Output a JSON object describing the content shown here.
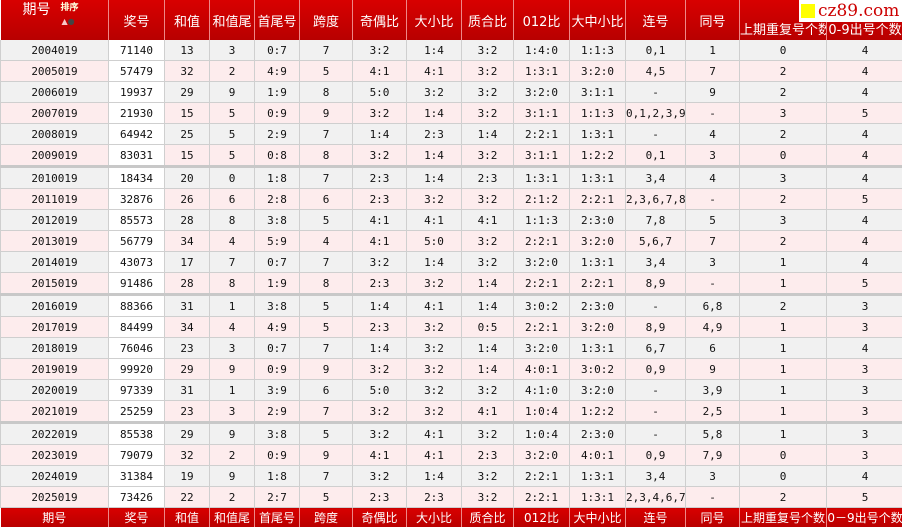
{
  "header": {
    "period_label": "期号",
    "sort_label": "排序",
    "columns": [
      "奖号",
      "和值",
      "和值尾",
      "首尾号",
      "跨度",
      "奇偶比",
      "大小比",
      "质合比",
      "012比",
      "大中小比",
      "连号",
      "同号",
      "上期重复号个数",
      "0-9出号个数"
    ]
  },
  "footer": {
    "columns": [
      "期号",
      "奖号",
      "和值",
      "和值尾",
      "首尾号",
      "跨度",
      "奇偶比",
      "大小比",
      "质合比",
      "012比",
      "大中小比",
      "连号",
      "同号",
      "上期重复号个数",
      "0－9出号个数"
    ]
  },
  "logo": {
    "text": "cz89.com",
    "color": "#cc0000",
    "square_color": "#ffff00"
  },
  "colors": {
    "header_red": "#c80000",
    "row_gray": "#f1f1f1",
    "row_pink": "#fdeced"
  },
  "rows": [
    [
      "2004019",
      "71140",
      "13",
      "3",
      "0:7",
      "7",
      "3:2",
      "1:4",
      "3:2",
      "1:4:0",
      "1:1:3",
      "0,1",
      "1",
      "0",
      "4"
    ],
    [
      "2005019",
      "57479",
      "32",
      "2",
      "4:9",
      "5",
      "4:1",
      "4:1",
      "3:2",
      "1:3:1",
      "3:2:0",
      "4,5",
      "7",
      "2",
      "4"
    ],
    [
      "2006019",
      "19937",
      "29",
      "9",
      "1:9",
      "8",
      "5:0",
      "3:2",
      "3:2",
      "3:2:0",
      "3:1:1",
      "-",
      "9",
      "2",
      "4"
    ],
    [
      "2007019",
      "21930",
      "15",
      "5",
      "0:9",
      "9",
      "3:2",
      "1:4",
      "3:2",
      "3:1:1",
      "1:1:3",
      "0,1,2,3,9",
      "-",
      "3",
      "5"
    ],
    [
      "2008019",
      "64942",
      "25",
      "5",
      "2:9",
      "7",
      "1:4",
      "2:3",
      "1:4",
      "2:2:1",
      "1:3:1",
      "-",
      "4",
      "2",
      "4"
    ],
    [
      "2009019",
      "83031",
      "15",
      "5",
      "0:8",
      "8",
      "3:2",
      "1:4",
      "3:2",
      "3:1:1",
      "1:2:2",
      "0,1",
      "3",
      "0",
      "4"
    ],
    [
      "2010019",
      "18434",
      "20",
      "0",
      "1:8",
      "7",
      "2:3",
      "1:4",
      "2:3",
      "1:3:1",
      "1:3:1",
      "3,4",
      "4",
      "3",
      "4"
    ],
    [
      "2011019",
      "32876",
      "26",
      "6",
      "2:8",
      "6",
      "2:3",
      "3:2",
      "3:2",
      "2:1:2",
      "2:2:1",
      "2,3,6,7,8",
      "-",
      "2",
      "5"
    ],
    [
      "2012019",
      "85573",
      "28",
      "8",
      "3:8",
      "5",
      "4:1",
      "4:1",
      "4:1",
      "1:1:3",
      "2:3:0",
      "7,8",
      "5",
      "3",
      "4"
    ],
    [
      "2013019",
      "56779",
      "34",
      "4",
      "5:9",
      "4",
      "4:1",
      "5:0",
      "3:2",
      "2:2:1",
      "3:2:0",
      "5,6,7",
      "7",
      "2",
      "4"
    ],
    [
      "2014019",
      "43073",
      "17",
      "7",
      "0:7",
      "7",
      "3:2",
      "1:4",
      "3:2",
      "3:2:0",
      "1:3:1",
      "3,4",
      "3",
      "1",
      "4"
    ],
    [
      "2015019",
      "91486",
      "28",
      "8",
      "1:9",
      "8",
      "2:3",
      "3:2",
      "1:4",
      "2:2:1",
      "2:2:1",
      "8,9",
      "-",
      "1",
      "5"
    ],
    [
      "2016019",
      "88366",
      "31",
      "1",
      "3:8",
      "5",
      "1:4",
      "4:1",
      "1:4",
      "3:0:2",
      "2:3:0",
      "-",
      "6,8",
      "2",
      "3"
    ],
    [
      "2017019",
      "84499",
      "34",
      "4",
      "4:9",
      "5",
      "2:3",
      "3:2",
      "0:5",
      "2:2:1",
      "3:2:0",
      "8,9",
      "4,9",
      "1",
      "3"
    ],
    [
      "2018019",
      "76046",
      "23",
      "3",
      "0:7",
      "7",
      "1:4",
      "3:2",
      "1:4",
      "3:2:0",
      "1:3:1",
      "6,7",
      "6",
      "1",
      "4"
    ],
    [
      "2019019",
      "99920",
      "29",
      "9",
      "0:9",
      "9",
      "3:2",
      "3:2",
      "1:4",
      "4:0:1",
      "3:0:2",
      "0,9",
      "9",
      "1",
      "3"
    ],
    [
      "2020019",
      "97339",
      "31",
      "1",
      "3:9",
      "6",
      "5:0",
      "3:2",
      "3:2",
      "4:1:0",
      "3:2:0",
      "-",
      "3,9",
      "1",
      "3"
    ],
    [
      "2021019",
      "25259",
      "23",
      "3",
      "2:9",
      "7",
      "3:2",
      "3:2",
      "4:1",
      "1:0:4",
      "1:2:2",
      "-",
      "2,5",
      "1",
      "3"
    ],
    [
      "2022019",
      "85538",
      "29",
      "9",
      "3:8",
      "5",
      "3:2",
      "4:1",
      "3:2",
      "1:0:4",
      "2:3:0",
      "-",
      "5,8",
      "1",
      "3"
    ],
    [
      "2023019",
      "79079",
      "32",
      "2",
      "0:9",
      "9",
      "4:1",
      "4:1",
      "2:3",
      "3:2:0",
      "4:0:1",
      "0,9",
      "7,9",
      "0",
      "3"
    ],
    [
      "2024019",
      "31384",
      "19",
      "9",
      "1:8",
      "7",
      "3:2",
      "1:4",
      "3:2",
      "2:2:1",
      "1:3:1",
      "3,4",
      "3",
      "0",
      "4"
    ],
    [
      "2025019",
      "73426",
      "22",
      "2",
      "2:7",
      "5",
      "2:3",
      "2:3",
      "3:2",
      "2:2:1",
      "1:3:1",
      "2,3,4,6,7",
      "-",
      "2",
      "5"
    ]
  ]
}
